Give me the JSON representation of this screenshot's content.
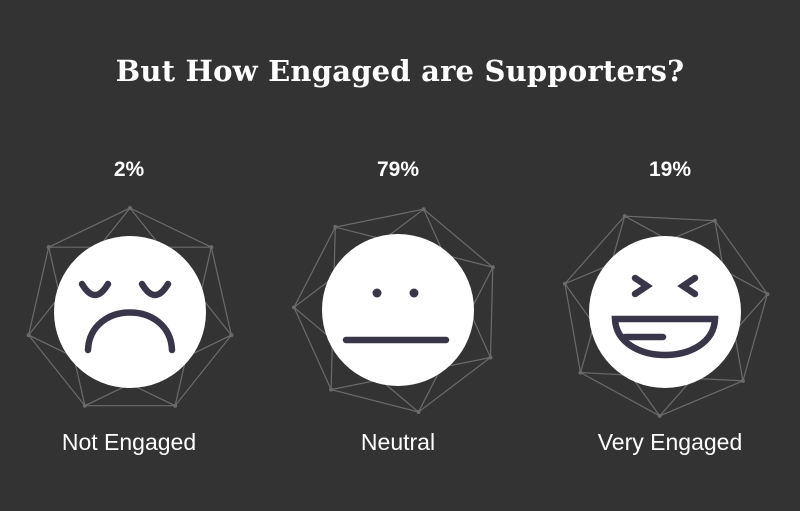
{
  "colors": {
    "background": "#333333",
    "text": "#ffffff",
    "face": "#ffffff",
    "feature": "#3a3649",
    "outline": "#6b6b6b"
  },
  "chart_data": {
    "type": "other",
    "title": "But How Engaged are Supporters?",
    "categories": [
      "Not Engaged",
      "Neutral",
      "Very Engaged"
    ],
    "values": [
      2,
      79,
      19
    ],
    "value_labels": [
      "2%",
      "79%",
      "19%"
    ],
    "unit": "%",
    "icons": [
      "sad-face-icon",
      "neutral-face-icon",
      "laughing-face-icon"
    ]
  }
}
